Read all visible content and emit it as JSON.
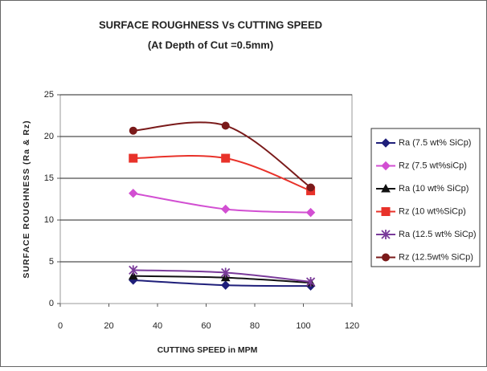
{
  "chart_data": {
    "type": "line",
    "title": "SURFACE ROUGHNESS Vs CUTTING SPEED",
    "subtitle": "(At Depth of Cut =0.5mm)",
    "x_label": "CUTTING SPEED in MPM",
    "y_label": "SURFACE ROUGHNESS (Ra & Rz)",
    "x": [
      30,
      68,
      103
    ],
    "xlim": [
      0,
      120
    ],
    "xticks": [
      0,
      20,
      40,
      60,
      80,
      100,
      120
    ],
    "ylim": [
      0,
      25
    ],
    "yticks": [
      0,
      5,
      10,
      15,
      20,
      25
    ],
    "grid": true,
    "legend": "right",
    "smooth": true,
    "series": [
      {
        "name": "Ra (7.5 wt% SiCp)",
        "color": "#1f1f7a",
        "marker": "diamond",
        "values": [
          2.8,
          2.2,
          2.1
        ]
      },
      {
        "name": "Rz (7.5 wt%siCp)",
        "color": "#d24fd2",
        "marker": "diamond",
        "values": [
          13.2,
          11.3,
          10.9
        ]
      },
      {
        "name": "Ra (10 wt% SiCp)",
        "color": "#111111",
        "marker": "triangle",
        "values": [
          3.3,
          3.1,
          2.5
        ]
      },
      {
        "name": "Rz (10 wt%SiCp)",
        "color": "#e8322a",
        "marker": "square",
        "values": [
          17.4,
          17.4,
          13.5
        ]
      },
      {
        "name": "Ra (12.5 wt% SiCp)",
        "color": "#7a3b9a",
        "marker": "star",
        "values": [
          4.0,
          3.7,
          2.6
        ]
      },
      {
        "name": "Rz (12.5wt% SiCp)",
        "color": "#7a1a1a",
        "marker": "circle",
        "values": [
          20.7,
          21.3,
          13.9
        ]
      }
    ]
  }
}
